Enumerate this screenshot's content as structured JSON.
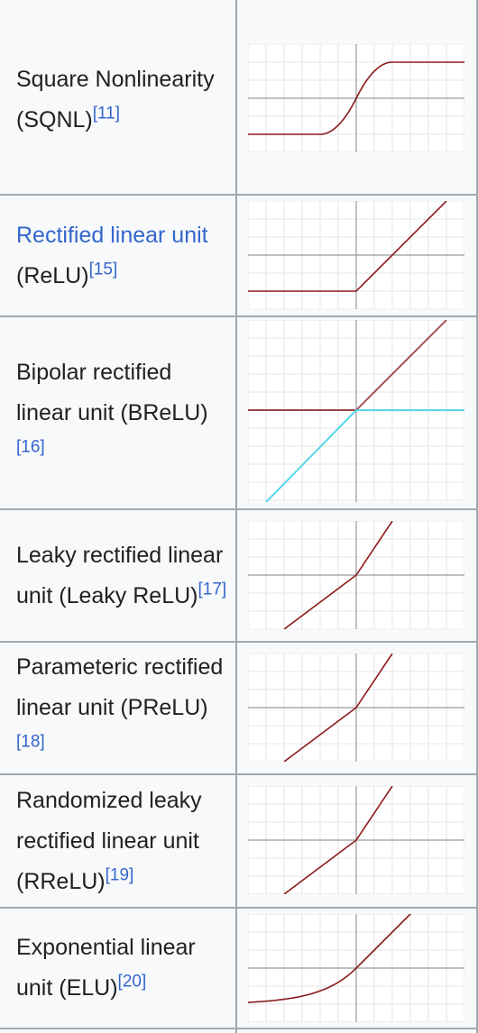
{
  "rows": [
    {
      "id": "sqnl",
      "name": "Square Nonlinearity (SQNL)",
      "link": "",
      "rest": "",
      "ref": "[11]",
      "curve": "sqnl"
    },
    {
      "id": "relu",
      "name": "",
      "link": "Rectified linear unit",
      "rest": " (ReLU)",
      "ref": "[15]",
      "curve": "relu"
    },
    {
      "id": "brelu",
      "name": "Bipolar rectified linear unit (BReLU)",
      "link": "",
      "rest": "",
      "ref": "[16]",
      "curve": "brelu"
    },
    {
      "id": "lrelu",
      "name": "Leaky rectified linear unit (Leaky ReLU)",
      "link": "",
      "rest": "",
      "ref": "[17]",
      "curve": "leaky"
    },
    {
      "id": "prelu",
      "name": "Parameteric rectified linear unit (PReLU)",
      "link": "",
      "rest": "",
      "ref": "[18]",
      "curve": "leaky"
    },
    {
      "id": "rrelu",
      "name": "Randomized leaky rectified linear unit (RReLU)",
      "link": "",
      "rest": "",
      "ref": "[19]",
      "curve": "leaky"
    },
    {
      "id": "elu",
      "name": "Exponential linear unit (ELU)",
      "link": "",
      "rest": "",
      "ref": "[20]",
      "curve": "elu"
    }
  ],
  "colors": {
    "curve": "#8b1a1a",
    "curve_secondary": "#55d6e8",
    "grid": "#e6e6e6",
    "axis": "#9a9a9a",
    "border": "#a2a9b1",
    "link": "#3366cc"
  }
}
